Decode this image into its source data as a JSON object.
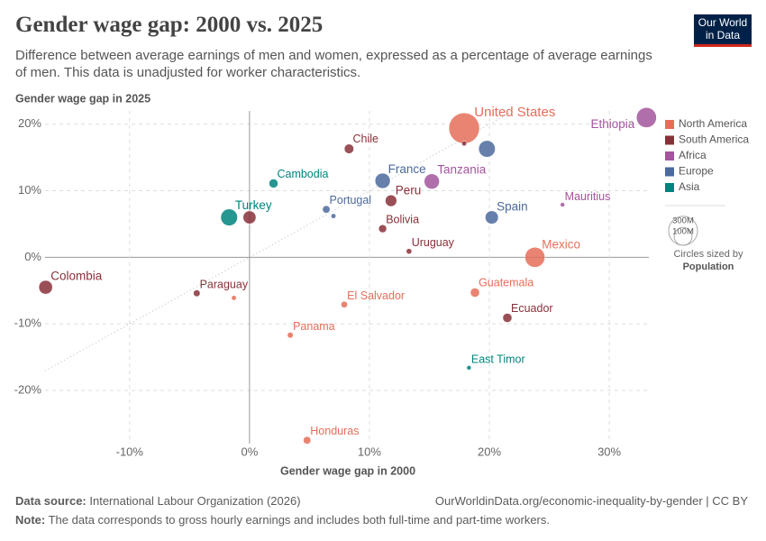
{
  "chart_data": {
    "type": "scatter",
    "title": "Gender wage gap: 2000 vs. 2025",
    "subtitle": "Difference between average earnings of men and women, expressed as a percentage of average earnings of men. This data is unadjusted for worker characteristics.",
    "logo": [
      "Our World",
      "in Data"
    ],
    "ylabel": "Gender wage gap in 2025",
    "xlabel": "Gender wage gap in 2000",
    "xlim": [
      -17.05,
      33.3
    ],
    "ylim": [
      -28,
      22
    ],
    "xticks": [
      {
        "value": -10,
        "label": "-10%"
      },
      {
        "value": 0,
        "label": "0%"
      },
      {
        "value": 10,
        "label": "10%"
      },
      {
        "value": 20,
        "label": "20%"
      },
      {
        "value": 30,
        "label": "30%"
      }
    ],
    "yticks": [
      {
        "value": -20,
        "label": "-20%"
      },
      {
        "value": -10,
        "label": "-10%"
      },
      {
        "value": 0,
        "label": "0%"
      },
      {
        "value": 10,
        "label": "10%"
      },
      {
        "value": 20,
        "label": "20%"
      }
    ],
    "grid": true,
    "series": [
      {
        "name": "North America",
        "color": "#e56e5a",
        "labels": [
          "United States",
          "Mexico",
          "Guatemala",
          "El Salvador",
          "Panama",
          "Honduras",
          null
        ],
        "x": [
          17.9,
          23.8,
          18.8,
          7.9,
          3.4,
          4.8,
          -1.3
        ],
        "values": [
          19.4,
          0,
          -5.3,
          -7.1,
          -11.7,
          -27.5,
          -6.1
        ],
        "sizes": [
          340,
          130,
          18,
          6.3,
          4.4,
          10.5,
          2
        ]
      },
      {
        "name": "South America",
        "color": "#883039",
        "labels": [
          "Chile",
          "Peru",
          "Bolivia",
          "Uruguay",
          "Colombia",
          "Paraguay",
          "Ecuador",
          null,
          null
        ],
        "x": [
          8.3,
          11.8,
          11.1,
          13.3,
          -17,
          -4.4,
          21.5,
          0,
          17.9
        ],
        "values": [
          16.3,
          8.5,
          4.3,
          0.9,
          -4.5,
          -5.4,
          -9.1,
          6.0,
          17.1
        ],
        "sizes": [
          20,
          34,
          12,
          3.4,
          53,
          7,
          18,
          46,
          2
        ]
      },
      {
        "name": "Africa",
        "color": "#a2559c",
        "labels": [
          "Ethiopia",
          "Tanzania",
          "Mauritius"
        ],
        "x": [
          33.1,
          15.2,
          26.1
        ],
        "values": [
          21.0,
          11.4,
          7.9
        ],
        "sizes": [
          130,
          68,
          1.3
        ]
      },
      {
        "name": "Europe",
        "color": "#4c6a9c",
        "labels": [
          "France",
          "Spain",
          "Portugal",
          null,
          null
        ],
        "x": [
          11.1,
          20.2,
          6.4,
          19.8,
          7.0
        ],
        "values": [
          11.5,
          6.0,
          7.2,
          16.3,
          6.2
        ],
        "sizes": [
          68,
          48,
          10,
          84,
          2
        ]
      },
      {
        "name": "Asia",
        "color": "#00847e",
        "labels": [
          "Turkey",
          "Cambodia",
          "East Timor"
        ],
        "x": [
          -1.7,
          2.0,
          18.3
        ],
        "values": [
          6.0,
          11.1,
          -16.6
        ],
        "sizes": [
          86,
          17,
          1.4
        ]
      }
    ],
    "size_legend": {
      "values": [
        {
          "value": 300,
          "label": "300M"
        },
        {
          "value": 100,
          "label": "100M"
        }
      ],
      "title": "Circles sized by",
      "variable": "Population"
    },
    "source_label": "Data source:",
    "source": "International Labour Organization (2026)",
    "url": "OurWorldinData.org/economic-inequality-by-gender | CC BY",
    "note_label": "Note:",
    "note": "The data corresponds to gross hourly earnings and includes both full-time and part-time workers."
  }
}
